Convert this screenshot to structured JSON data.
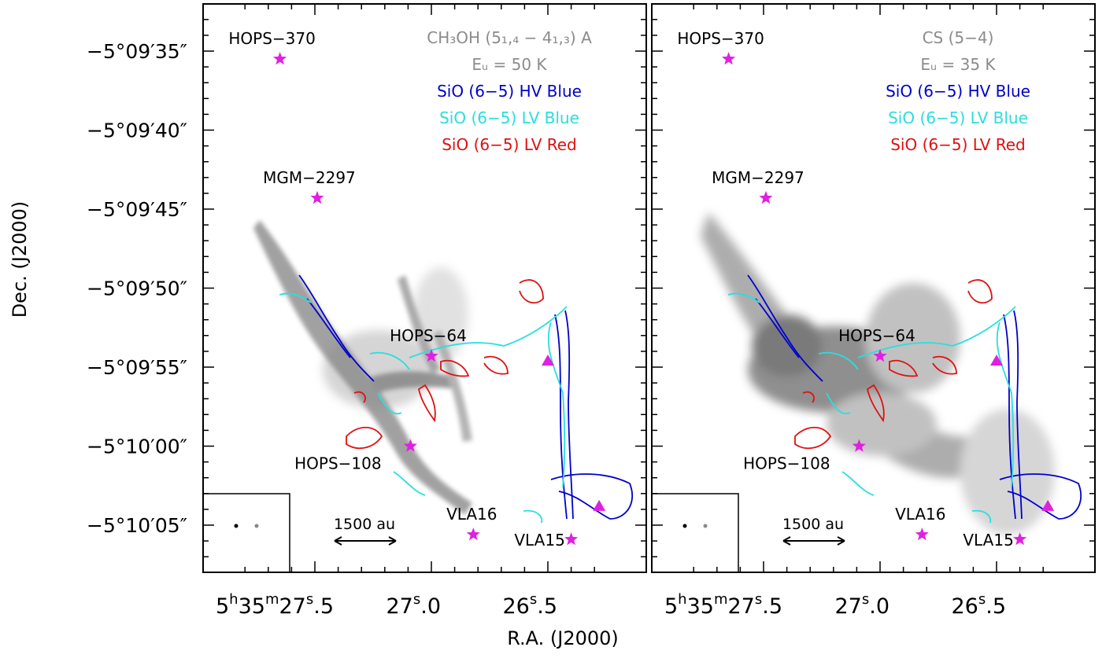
{
  "chart_data": {
    "type": "scatter",
    "xlabel": "R.A. (J2000)",
    "ylabel": "Dec. (J2000)",
    "y_ticks": [
      "−5°09′35″",
      "−5°09′40″",
      "−5°09′45″",
      "−5°09′50″",
      "−5°09′55″",
      "−5°10′00″",
      "−5°10′05″"
    ],
    "y_tick_values": [
      35,
      40,
      45,
      50,
      55,
      60,
      65
    ],
    "x_tick_values": [
      27.5,
      27.0,
      26.5
    ],
    "x_ticks": {
      "ra_prefix_h": "5",
      "ra_prefix_m": "35",
      "labels": [
        "27.5",
        "27.0",
        "26.5"
      ]
    },
    "scale_bar": "1500 au",
    "panels": [
      {
        "legend": [
          {
            "text": "CH₃OH (5₁,₄ − 4₁,₃) A",
            "color": "#8c8c8c"
          },
          {
            "text": "Eᵤ = 50 K",
            "color": "#8c8c8c"
          },
          {
            "text": "SiO (6−5) HV Blue",
            "color": "#0000cc"
          },
          {
            "text": "SiO (6−5) LV Blue",
            "color": "#2adede"
          },
          {
            "text": "SiO (6−5) LV Red",
            "color": "#e01010"
          }
        ]
      },
      {
        "legend": [
          {
            "text": "CS (5−4)",
            "color": "#8c8c8c"
          },
          {
            "text": "Eᵤ = 35 K",
            "color": "#8c8c8c"
          },
          {
            "text": "SiO (6−5) HV Blue",
            "color": "#0000cc"
          },
          {
            "text": "SiO (6−5) LV Blue",
            "color": "#2adede"
          },
          {
            "text": "SiO (6−5) LV Red",
            "color": "#e01010"
          }
        ]
      }
    ],
    "sources": [
      {
        "name": "HOPS−370",
        "ra": 27.65,
        "dec": 35.5,
        "marker": "star"
      },
      {
        "name": "MGM−2297",
        "ra": 27.49,
        "dec": 44.3,
        "marker": "star"
      },
      {
        "name": "HOPS−64",
        "ra": 27.0,
        "dec": 54.3,
        "marker": "star"
      },
      {
        "name": "HOPS−108",
        "ra": 27.09,
        "dec": 60.0,
        "marker": "star"
      },
      {
        "name": "VLA16",
        "ra": 26.82,
        "dec": 65.6,
        "marker": "star"
      },
      {
        "name": "VLA15",
        "ra": 26.4,
        "dec": 65.9,
        "marker": "star"
      },
      {
        "name": "",
        "ra": 26.5,
        "dec": 54.6,
        "marker": "triangle"
      },
      {
        "name": "",
        "ra": 26.28,
        "dec": 63.8,
        "marker": "triangle"
      }
    ],
    "colors": {
      "hv_blue": "#0000cc",
      "lv_blue": "#2adede",
      "lv_red": "#e01010",
      "source_marker": "#e020e0",
      "legend_gray": "#8c8c8c"
    }
  }
}
